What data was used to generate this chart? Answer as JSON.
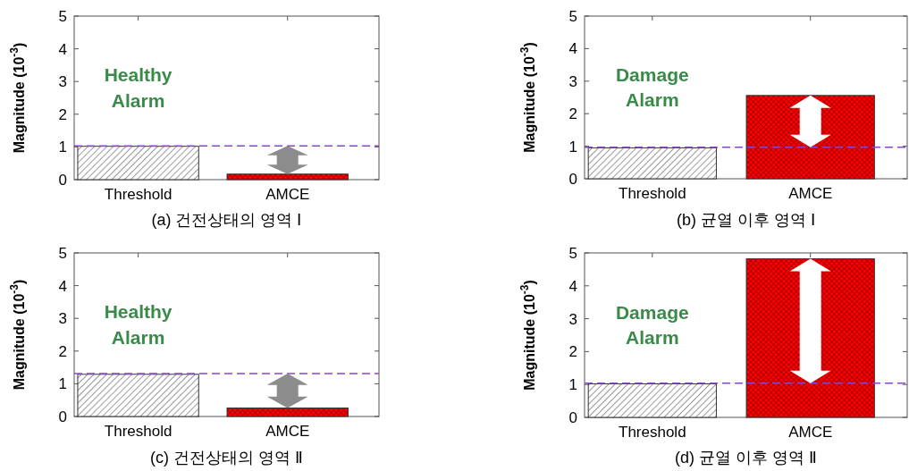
{
  "chart_data": [
    {
      "type": "bar",
      "title": "(a) 건전상태의 영역 Ⅰ",
      "ylabel": "Magnitude (10$^{-3}$)",
      "categories": [
        "Threshold",
        "AMCE"
      ],
      "values": [
        1.02,
        0.17
      ],
      "colors": [
        "#ffffff",
        "#ff0000"
      ],
      "ylim": [
        0,
        5
      ],
      "yticks": [
        0,
        1,
        2,
        3,
        4,
        5
      ],
      "ref_lines": [
        {
          "axis": "y",
          "value": 1.03,
          "color": "#8e44c8",
          "line_style": "dashed"
        }
      ],
      "annotations": [
        "Healthy Alarm"
      ]
    },
    {
      "type": "bar",
      "title": "(b) 균열 이후 영역 Ⅰ",
      "ylabel": "Magnitude (10$^{-3}$)",
      "categories": [
        "Threshold",
        "AMCE"
      ],
      "values": [
        0.95,
        2.56
      ],
      "colors": [
        "#ffffff",
        "#ff0000"
      ],
      "ylim": [
        0,
        5
      ],
      "yticks": [
        0,
        1,
        2,
        3,
        4,
        5
      ],
      "ref_lines": [
        {
          "axis": "y",
          "value": 0.97,
          "color": "#8e44c8",
          "line_style": "dashed"
        }
      ],
      "annotations": [
        "Damage Alarm"
      ]
    },
    {
      "type": "bar",
      "title": "(c) 건전상태의 영역 Ⅱ",
      "ylabel": "Magnitude (10$^{-3}$)",
      "categories": [
        "Threshold",
        "AMCE"
      ],
      "values": [
        1.29,
        0.26
      ],
      "colors": [
        "#ffffff",
        "#ff0000"
      ],
      "ylim": [
        0,
        5
      ],
      "yticks": [
        0,
        1,
        2,
        3,
        4,
        5
      ],
      "ref_lines": [
        {
          "axis": "y",
          "value": 1.31,
          "color": "#8e44c8",
          "line_style": "dashed"
        }
      ],
      "annotations": [
        "Healthy Alarm"
      ]
    },
    {
      "type": "bar",
      "title": "(d) 균열 이후 영역 Ⅱ",
      "ylabel": "Magnitude (10$^{-3}$)",
      "categories": [
        "Threshold",
        "AMCE"
      ],
      "values": [
        1.02,
        4.82
      ],
      "colors": [
        "#ffffff",
        "#ff0000"
      ],
      "ylim": [
        0,
        5
      ],
      "yticks": [
        0,
        1,
        2,
        3,
        4,
        5
      ],
      "ref_lines": [
        {
          "axis": "y",
          "value": 1.04,
          "color": "#8e44c8",
          "line_style": "dashed"
        }
      ],
      "annotations": [
        "Damage Alarm"
      ]
    }
  ]
}
